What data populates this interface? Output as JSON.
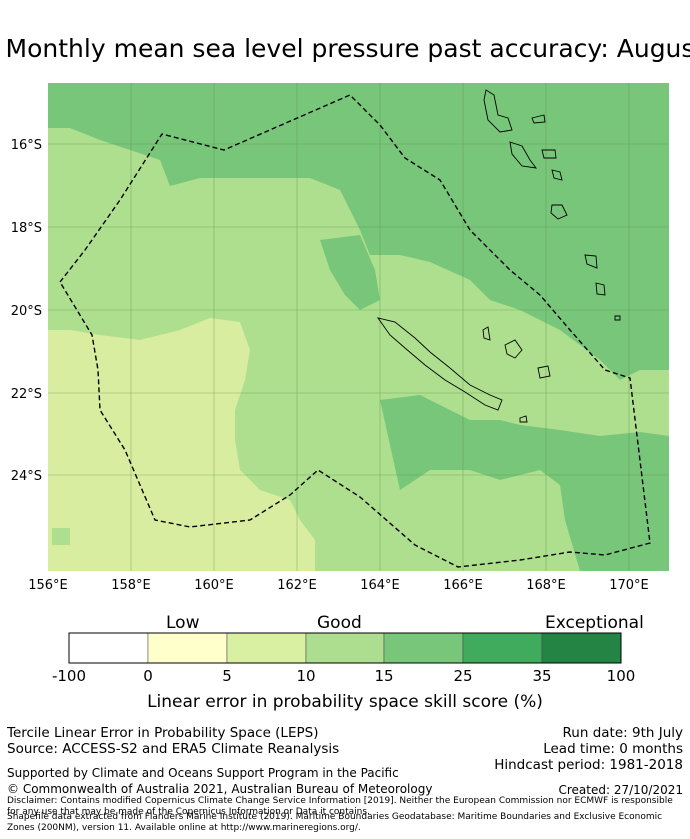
{
  "title": "Monthly mean sea level pressure past accuracy: Augus",
  "map": {
    "lon_labels": [
      "156°E",
      "158°E",
      "160°E",
      "162°E",
      "164°E",
      "166°E",
      "168°E",
      "170°E"
    ],
    "lat_labels": [
      "16°S",
      "18°S",
      "20°S",
      "22°S",
      "24°S"
    ],
    "colors": {
      "low": "#d9eda0",
      "mid": "#addf8e",
      "high": "#78c679",
      "ocean_outline": "#000000"
    }
  },
  "colorbar": {
    "category_labels": {
      "low": "Low",
      "good": "Good",
      "exceptional": "Exceptional"
    },
    "ticks": [
      "-100",
      "0",
      "5",
      "10",
      "15",
      "25",
      "35",
      "100"
    ],
    "colors": [
      "#ffffff",
      "#ffffcc",
      "#d9f0a3",
      "#addd8e",
      "#78c679",
      "#41ab5d",
      "#238443"
    ],
    "title": "Linear error in probability space skill score (%)"
  },
  "info": {
    "method": "Tercile Linear Error in Probability Space (LEPS)",
    "source": "Source: ACCESS-S2 and ERA5 Climate Reanalysis",
    "run_date": "Run date: 9th July",
    "lead_time": "Lead time: 0 months",
    "hindcast": "Hindcast period: 1981-2018",
    "support": "Supported by Climate and Oceans Support Program in the Pacific",
    "copyright": "© Commonwealth of Australia 2021, Australian Bureau of Meteorology",
    "created": "Created: 27/10/2021",
    "disclaimer1": "Disclaimer: Contains modified Copernicus Climate Change Service Information [2019]. Neither the European Commission nor ECMWF is responsible for any use that may be made of the Copernicus Information or Data it contains.",
    "disclaimer2": "Shapefile data extracted from Flanders Marine Institute (2019). Maritime Boundaries Geodatabase: Maritime Boundaries and Exclusive Economic Zones (200NM), version 11. Available online at http://www.marineregions.org/."
  }
}
